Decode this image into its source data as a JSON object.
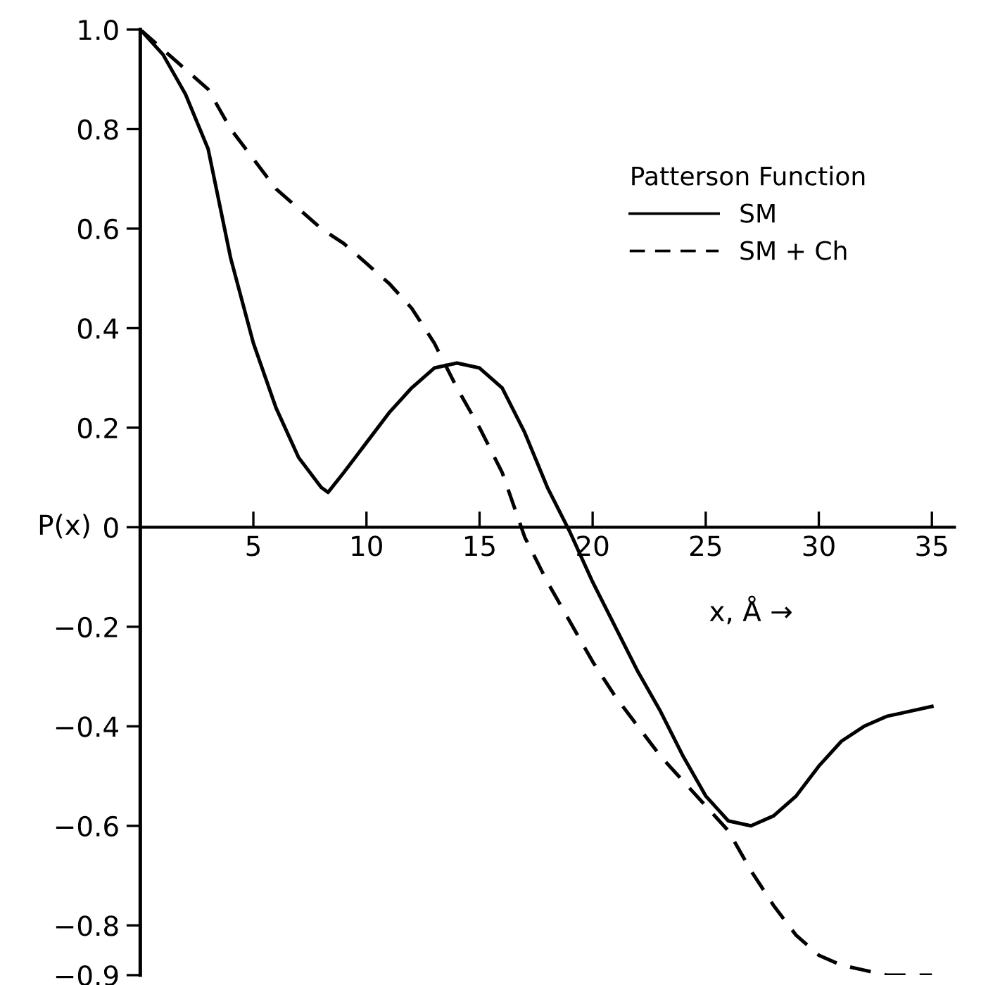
{
  "chart_data": {
    "type": "line",
    "xlabel": "x, Å →",
    "ylabel": "P(x)",
    "legend_title": "Patterson Function",
    "xlim": [
      0,
      36
    ],
    "xticks": [
      {
        "value": 0,
        "label": null
      },
      5,
      10,
      15,
      20,
      25,
      30,
      35
    ],
    "ylim": [
      -0.9,
      1.0
    ],
    "yticks": [
      {
        "value": -0.9,
        "label": "−0.9"
      },
      {
        "value": -0.8,
        "label": "−0.8"
      },
      {
        "value": -0.6,
        "label": "−0.6"
      },
      {
        "value": -0.4,
        "label": "−0.4"
      },
      {
        "value": -0.2,
        "label": "−0.2"
      },
      0,
      0.2,
      0.4,
      0.6,
      0.8,
      {
        "value": 1.0,
        "label": "1.0"
      }
    ],
    "grid": false,
    "legend": "top right",
    "marker": "none",
    "series": [
      {
        "name": "SM",
        "color": "#000000",
        "line_style": "solid",
        "x": [
          0,
          1,
          2,
          3,
          4,
          5,
          6,
          7,
          8,
          8.3,
          9,
          10,
          11,
          12,
          13,
          14,
          15,
          16,
          17,
          18,
          19,
          20,
          21,
          22,
          23,
          24,
          25,
          26,
          27,
          28,
          29,
          30,
          31,
          32,
          33,
          34,
          35
        ],
        "values": [
          1.0,
          0.95,
          0.87,
          0.76,
          0.54,
          0.37,
          0.24,
          0.14,
          0.08,
          0.07,
          0.11,
          0.17,
          0.23,
          0.28,
          0.32,
          0.33,
          0.32,
          0.28,
          0.19,
          0.08,
          -0.01,
          -0.11,
          -0.2,
          -0.29,
          -0.37,
          -0.46,
          -0.54,
          -0.59,
          -0.6,
          -0.58,
          -0.54,
          -0.48,
          -0.43,
          -0.4,
          -0.38,
          -0.37,
          -0.36
        ]
      },
      {
        "name": "SM + Ch",
        "color": "#000000",
        "line_style": "dashed",
        "x": [
          0,
          1,
          2,
          3,
          4,
          5,
          6,
          7,
          8,
          9,
          10,
          11,
          12,
          13,
          14,
          15,
          16,
          17,
          18,
          19,
          20,
          21,
          22,
          23,
          24,
          25,
          26,
          27,
          28,
          29,
          30,
          31,
          32,
          33,
          34,
          35
        ],
        "values": [
          1.0,
          0.96,
          0.92,
          0.88,
          0.8,
          0.74,
          0.68,
          0.64,
          0.6,
          0.57,
          0.53,
          0.49,
          0.44,
          0.37,
          0.28,
          0.2,
          0.11,
          -0.02,
          -0.11,
          -0.19,
          -0.27,
          -0.34,
          -0.4,
          -0.46,
          -0.51,
          -0.56,
          -0.61,
          -0.69,
          -0.76,
          -0.82,
          -0.86,
          -0.88,
          -0.89,
          -0.9,
          -0.9,
          -0.9
        ]
      }
    ]
  }
}
